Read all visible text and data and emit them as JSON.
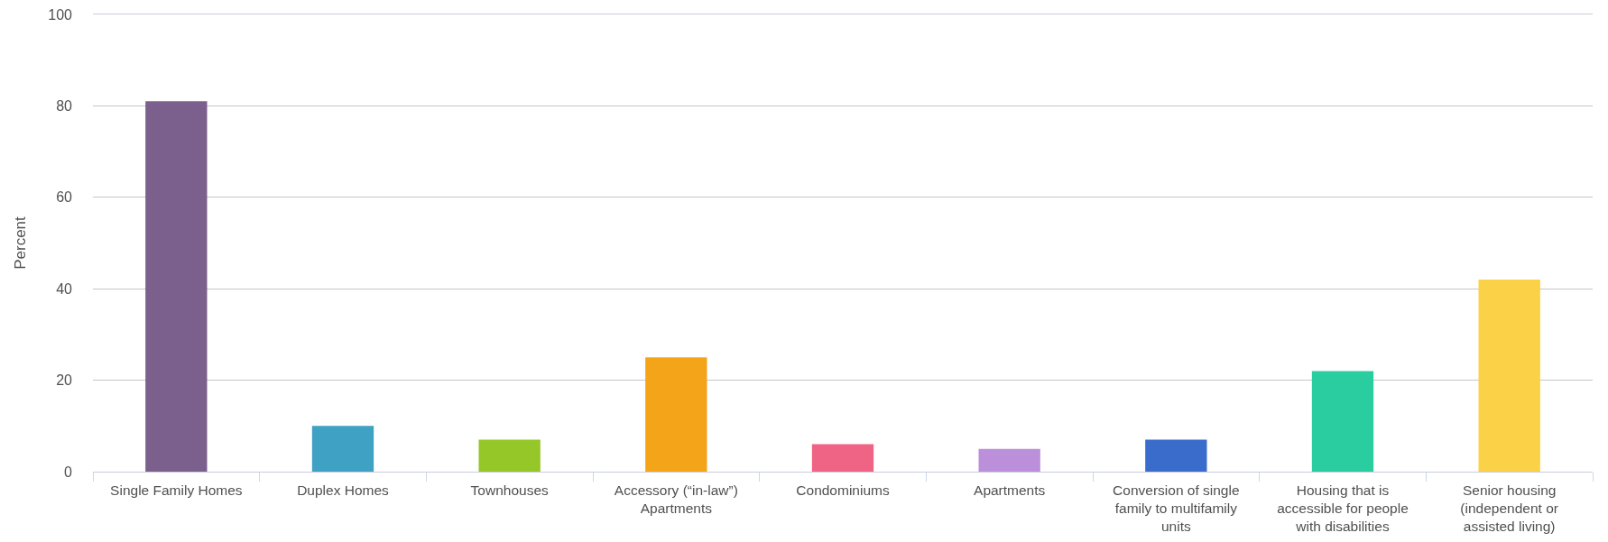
{
  "chart_data": {
    "type": "bar",
    "ylabel": "Percent",
    "categories": [
      "Single Family Homes",
      "Duplex Homes",
      "Townhouses",
      "Accessory (“in-law”) Apartments",
      "Condominiums",
      "Apartments",
      "Conversion of single family to multifamily units",
      "Housing that is accessible for people with disabilities",
      "Senior housing (independent or assisted living)"
    ],
    "values": [
      81,
      10,
      7,
      25,
      6,
      5,
      7,
      22,
      42
    ],
    "colors": [
      "#7b608d",
      "#3fa1c3",
      "#94c727",
      "#f4a418",
      "#ef6484",
      "#bb8fd9",
      "#3a6dcb",
      "#2acda0",
      "#fbd148"
    ],
    "ylim": [
      0,
      100
    ],
    "yticks": [
      0,
      20,
      40,
      60,
      80,
      100
    ],
    "grid": "y"
  }
}
